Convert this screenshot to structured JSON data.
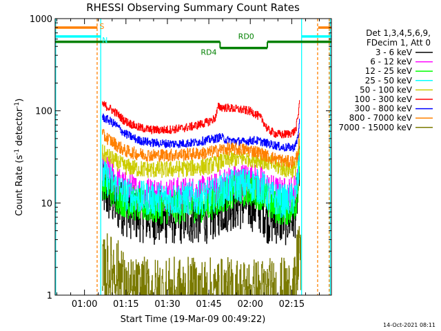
{
  "chart_data": {
    "type": "line",
    "title": "RHESSI Observing Summary Count Rates",
    "xlabel": "Start Time (19-Mar-09 00:49:22)",
    "ylabel": "Count Rate (s",
    "ylabel_sup": "-1",
    "ylabel_tail": " detector",
    "ylabel_close": ")",
    "x_unit": "minutes since 00:49:22",
    "xlim": [
      0,
      100
    ],
    "y_scale": "log",
    "ylim": [
      1,
      1000
    ],
    "y_ticks": [
      {
        "value": 1,
        "label": "1"
      },
      {
        "value": 10,
        "label": "10"
      },
      {
        "value": 100,
        "label": "100"
      },
      {
        "value": 1000,
        "label": "1000"
      }
    ],
    "x_ticks": [
      {
        "value": 10.63,
        "label": "01:00"
      },
      {
        "value": 25.63,
        "label": "01:15"
      },
      {
        "value": 40.63,
        "label": "01:30"
      },
      {
        "value": 55.63,
        "label": "01:45"
      },
      {
        "value": 70.63,
        "label": "02:00"
      },
      {
        "value": 85.63,
        "label": "02:15"
      }
    ],
    "legend_header": [
      "Det 1,3,4,5,6,9,",
      "FDecim 1, Att 0"
    ],
    "series": [
      {
        "name": "3 - 6 keV",
        "color": "#000000",
        "x": [
          17,
          19,
          22,
          25,
          30,
          35,
          40,
          45,
          50,
          55,
          58,
          60,
          62,
          65,
          70,
          72,
          75,
          76,
          77,
          78,
          80,
          82,
          84,
          86,
          87,
          88,
          88.5
        ],
        "y": [
          14,
          12,
          10,
          8.5,
          7.5,
          7,
          7,
          7,
          7,
          7.2,
          8,
          9,
          9.5,
          10,
          10,
          9.5,
          9,
          8,
          7,
          7,
          7,
          6.8,
          6.8,
          7,
          8.5,
          16,
          35
        ],
        "noise": 0.13
      },
      {
        "name": "6 - 12 keV",
        "color": "#ff00ff",
        "x": [
          17,
          19,
          22,
          25,
          30,
          35,
          40,
          45,
          50,
          55,
          58,
          60,
          62,
          65,
          70,
          72,
          75,
          76,
          77,
          78,
          80,
          82,
          84,
          86,
          87,
          88,
          88.5
        ],
        "y": [
          24,
          21,
          17,
          14.5,
          13,
          12.5,
          12.5,
          12.5,
          12.8,
          13,
          14,
          15.5,
          16.5,
          17.5,
          18,
          17.5,
          16.5,
          15.5,
          14,
          13.5,
          13,
          12.5,
          12.5,
          13,
          14.5,
          24,
          40
        ],
        "noise": 0.08
      },
      {
        "name": "12 - 25 keV",
        "color": "#00ff00",
        "x": [
          17,
          19,
          22,
          25,
          30,
          35,
          40,
          45,
          50,
          55,
          58,
          60,
          62,
          65,
          70,
          72,
          75,
          76,
          77,
          78,
          80,
          82,
          84,
          86,
          87,
          88,
          88.5
        ],
        "y": [
          17,
          15,
          12,
          10.5,
          9.5,
          9,
          9,
          9,
          9.2,
          9.5,
          10.5,
          11.5,
          12.5,
          13.5,
          14,
          13.5,
          12.5,
          11.5,
          10,
          9.5,
          9,
          8.7,
          8.7,
          9,
          10,
          17,
          35
        ],
        "noise": 0.08
      },
      {
        "name": "25 - 50 keV",
        "color": "#00ffff",
        "x": [
          17,
          19,
          22,
          25,
          30,
          35,
          40,
          45,
          50,
          55,
          58,
          60,
          62,
          65,
          70,
          72,
          75,
          76,
          77,
          78,
          80,
          82,
          84,
          86,
          87,
          88,
          88.5
        ],
        "y": [
          20,
          18,
          15,
          12.5,
          11.5,
          11,
          11,
          11,
          11.2,
          11.5,
          12.5,
          13.5,
          14.5,
          15.5,
          16,
          15.5,
          14.5,
          13.5,
          12,
          11.5,
          11,
          10.5,
          10.5,
          11,
          12,
          20,
          38
        ],
        "noise": 0.08
      },
      {
        "name": "50 - 100 keV",
        "color": "#cccc00",
        "x": [
          17,
          19,
          22,
          25,
          30,
          35,
          40,
          45,
          50,
          55,
          57,
          59,
          60,
          62,
          65,
          68,
          70,
          72,
          75,
          77,
          80,
          82,
          84,
          86,
          87,
          88,
          88.5
        ],
        "y": [
          35,
          32,
          28,
          25,
          23.5,
          23,
          23,
          23.5,
          24,
          25,
          26,
          27,
          28,
          29,
          30,
          30.5,
          30.5,
          30,
          29,
          27.5,
          25,
          24,
          23,
          23,
          24,
          32,
          48
        ],
        "noise": 0.04
      },
      {
        "name": "100 - 300 keV",
        "color": "#ff0000",
        "x": [
          17,
          19,
          22,
          25,
          30,
          35,
          40,
          45,
          50,
          55,
          57,
          58,
          59,
          62,
          65,
          68,
          70,
          72,
          75,
          76,
          77,
          80,
          82,
          84,
          86,
          87,
          88,
          88.5
        ],
        "y": [
          118,
          110,
          95,
          78,
          66,
          62,
          62,
          64,
          68,
          75,
          80,
          85,
          110,
          108,
          105,
          102,
          100,
          95,
          80,
          70,
          62,
          56,
          55,
          56,
          58,
          62,
          90,
          155
        ],
        "noise": 0.02
      },
      {
        "name": "300 - 800 keV",
        "color": "#0000ff",
        "x": [
          17,
          19,
          22,
          25,
          30,
          35,
          40,
          45,
          50,
          55,
          58,
          60,
          62,
          65,
          68,
          70,
          72,
          75,
          77,
          80,
          82,
          84,
          86,
          87,
          88,
          88.5
        ],
        "y": [
          85,
          80,
          70,
          57,
          48,
          45,
          44,
          44,
          45,
          48,
          50,
          52,
          48,
          47,
          46,
          47,
          48,
          46,
          44,
          42,
          40,
          40,
          40,
          42,
          55,
          100
        ],
        "noise": 0.02
      },
      {
        "name": "800 - 7000 keV",
        "color": "#ff8000",
        "x": [
          17,
          19,
          22,
          25,
          30,
          35,
          40,
          45,
          50,
          55,
          57,
          59,
          60,
          62,
          65,
          68,
          70,
          72,
          75,
          77,
          80,
          82,
          84,
          86,
          87,
          88,
          88.5
        ],
        "y": [
          55,
          50,
          43,
          37,
          34,
          33,
          33,
          33.5,
          34,
          35,
          36,
          37,
          38,
          38.5,
          38.5,
          38,
          37.5,
          36.5,
          34,
          32,
          30,
          29,
          28,
          28,
          29,
          38,
          60
        ],
        "noise": 0.03
      },
      {
        "name": "7000 - 15000 keV",
        "color": "#7a7a00",
        "x": [
          17,
          17.5,
          18,
          19,
          20,
          21,
          22,
          23,
          24,
          24.5,
          25,
          84,
          85,
          86,
          87,
          87.5,
          88,
          88.5,
          89
        ],
        "y": [
          1,
          2,
          1.5,
          2,
          1.7,
          2,
          1.8,
          1.5,
          2,
          1.3,
          1,
          1,
          1,
          1,
          1,
          2,
          3,
          4,
          1
        ],
        "noise": 0.18
      }
    ],
    "annotations": {
      "states": [
        {
          "label": "S",
          "color": "#ff8000",
          "segments": [
            [
              0,
              15.3
            ],
            [
              95.2,
              100
            ]
          ],
          "level": 800
        },
        {
          "label": "N",
          "color": "#00ffff",
          "segments": [
            [
              0,
              16.5
            ],
            [
              89.2,
              100
            ]
          ],
          "level": 640
        },
        {
          "label": "RD0",
          "color": "#008000",
          "segments": [
            [
              0,
              59.7
            ],
            [
              76.8,
              100
            ]
          ],
          "level": 560
        },
        {
          "label": "RD4",
          "color": "#008000",
          "segments": [
            [
              59.7,
              76.8
            ]
          ],
          "level": 480
        }
      ],
      "vlines": [
        {
          "x": 0.2,
          "color": "#00ffff",
          "dash": false
        },
        {
          "x": 16.5,
          "color": "#00ffff",
          "dash": false
        },
        {
          "x": 89.2,
          "color": "#00ffff",
          "dash": false
        },
        {
          "x": 99.6,
          "color": "#00ffff",
          "dash": false
        },
        {
          "x": 15.2,
          "color": "#ff8000",
          "dash": true
        },
        {
          "x": 95.0,
          "color": "#ff8000",
          "dash": true
        },
        {
          "x": 99.2,
          "color": "#ff8000",
          "dash": true
        }
      ]
    },
    "grid": false,
    "legend_position": "right"
  },
  "footer_stamp": "14-Oct-2021 08:11"
}
